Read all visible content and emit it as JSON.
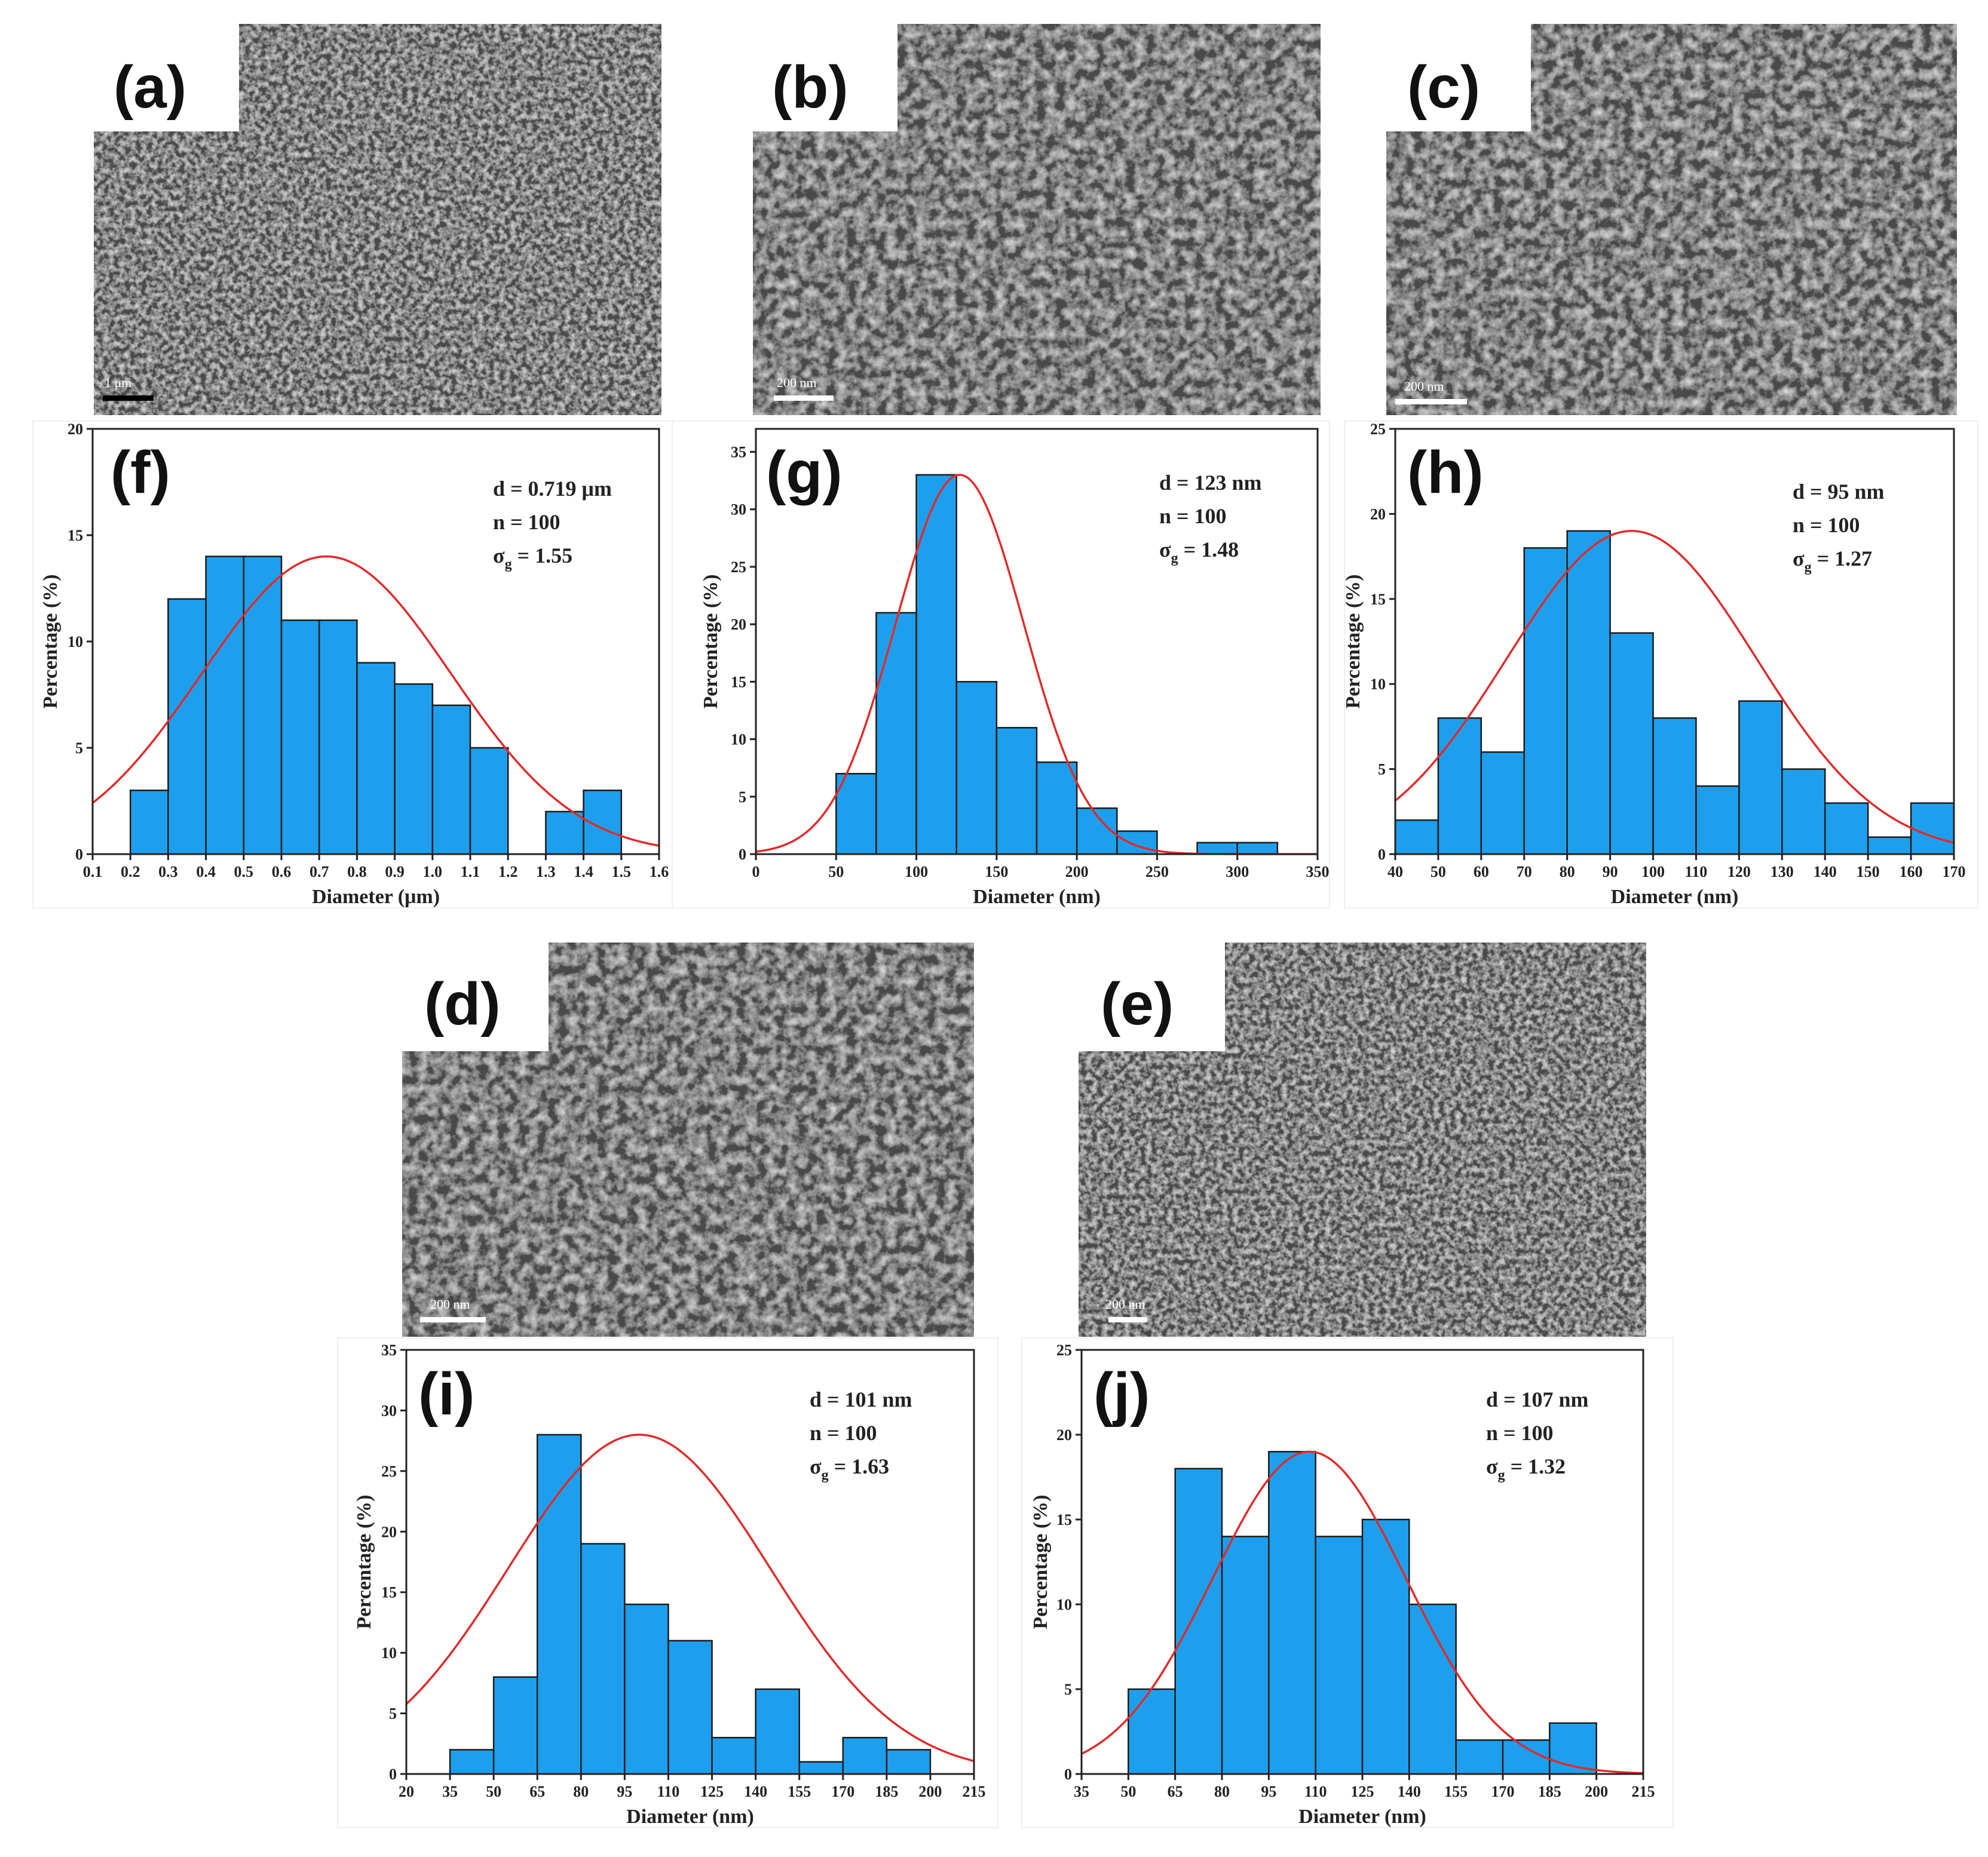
{
  "colors": {
    "bar": "#1e9fee",
    "curve": "#e02a2a",
    "sem_dark": "#4a4a4a",
    "sem_light": "#b9b9b9"
  },
  "sem_panels": [
    {
      "id": "a",
      "label": "(a)",
      "scale_bar": "1 μm"
    },
    {
      "id": "b",
      "label": "(b)",
      "scale_bar": "200 nm"
    },
    {
      "id": "c",
      "label": "(c)",
      "scale_bar": "200 nm"
    },
    {
      "id": "d",
      "label": "(d)",
      "scale_bar": "200 nm"
    },
    {
      "id": "e",
      "label": "(e)",
      "scale_bar": "200 nm"
    }
  ],
  "chart_data": [
    {
      "id": "f",
      "label": "(f)",
      "type": "bar",
      "xlabel": "Diameter (μm)",
      "ylabel": "Percentage (%)",
      "xlim": [
        0.1,
        1.6
      ],
      "ylim": [
        0,
        20
      ],
      "xticks": [
        0.1,
        0.2,
        0.3,
        0.4,
        0.5,
        0.6,
        0.7,
        0.8,
        0.9,
        1.0,
        1.1,
        1.2,
        1.3,
        1.4,
        1.5,
        1.6
      ],
      "xtick_labels": [
        "0.1",
        "0.2",
        "0.3",
        "0.4",
        "0.5",
        "0.6",
        "0.7",
        "0.8",
        "0.9",
        "1.0",
        "1.1",
        "1.2",
        "1.3",
        "1.4",
        "1.5",
        "1.6"
      ],
      "yticks": [
        0,
        5,
        10,
        15,
        20
      ],
      "ytick_labels": [
        "0",
        "5",
        "10",
        "15",
        "20"
      ],
      "bin_width": 0.1,
      "bins": [
        {
          "start": 0.2,
          "value": 3
        },
        {
          "start": 0.3,
          "value": 12
        },
        {
          "start": 0.4,
          "value": 14
        },
        {
          "start": 0.5,
          "value": 14
        },
        {
          "start": 0.6,
          "value": 11
        },
        {
          "start": 0.7,
          "value": 11
        },
        {
          "start": 0.8,
          "value": 9
        },
        {
          "start": 0.9,
          "value": 8
        },
        {
          "start": 1.0,
          "value": 7
        },
        {
          "start": 1.1,
          "value": 5
        },
        {
          "start": 1.3,
          "value": 2
        },
        {
          "start": 1.4,
          "value": 3
        }
      ],
      "fit": {
        "mean": 0.719,
        "peak": 14,
        "sigma": 0.33
      },
      "stats": {
        "d": "d = 0.719 μm",
        "n": "n = 100",
        "sigma_prefix": "σ",
        "sigma_sub": "g",
        "sigma_value": " = 1.55"
      }
    },
    {
      "id": "g",
      "label": "(g)",
      "type": "bar",
      "xlabel": "Diameter (nm)",
      "ylabel": "Percentage (%)",
      "xlim": [
        0,
        350
      ],
      "ylim": [
        0,
        37
      ],
      "xticks": [
        0,
        50,
        100,
        150,
        200,
        250,
        300,
        350
      ],
      "xtick_labels": [
        "0",
        "50",
        "100",
        "150",
        "200",
        "250",
        "300",
        "350"
      ],
      "yticks": [
        0,
        5,
        10,
        15,
        20,
        25,
        30,
        35
      ],
      "ytick_labels": [
        "0",
        "5",
        "10",
        "15",
        "20",
        "25",
        "30",
        "35"
      ],
      "bin_width": 25,
      "bins": [
        {
          "start": 50,
          "value": 7
        },
        {
          "start": 75,
          "value": 21
        },
        {
          "start": 100,
          "value": 33
        },
        {
          "start": 125,
          "value": 15
        },
        {
          "start": 150,
          "value": 11
        },
        {
          "start": 175,
          "value": 8
        },
        {
          "start": 200,
          "value": 4
        },
        {
          "start": 225,
          "value": 2
        },
        {
          "start": 275,
          "value": 1
        },
        {
          "start": 300,
          "value": 1
        }
      ],
      "fit": {
        "mean": 127,
        "peak": 33,
        "sigma": 40
      },
      "stats": {
        "d": "d = 123 nm",
        "n": "n = 100",
        "sigma_prefix": "σ",
        "sigma_sub": "g",
        "sigma_value": " = 1.48"
      }
    },
    {
      "id": "h",
      "label": "(h)",
      "type": "bar",
      "xlabel": "Diameter (nm)",
      "ylabel": "Percentage (%)",
      "xlim": [
        40,
        170
      ],
      "ylim": [
        0,
        25
      ],
      "xticks": [
        40,
        50,
        60,
        70,
        80,
        90,
        100,
        110,
        120,
        130,
        140,
        150,
        160,
        170
      ],
      "xtick_labels": [
        "40",
        "50",
        "60",
        "70",
        "80",
        "90",
        "100",
        "110",
        "120",
        "130",
        "140",
        "150",
        "160",
        "170"
      ],
      "yticks": [
        0,
        5,
        10,
        15,
        20,
        25
      ],
      "ytick_labels": [
        "0",
        "5",
        "10",
        "15",
        "20",
        "25"
      ],
      "bin_width": 10,
      "bins": [
        {
          "start": 40,
          "value": 2
        },
        {
          "start": 50,
          "value": 8
        },
        {
          "start": 60,
          "value": 6
        },
        {
          "start": 70,
          "value": 18
        },
        {
          "start": 80,
          "value": 19
        },
        {
          "start": 90,
          "value": 13
        },
        {
          "start": 100,
          "value": 8
        },
        {
          "start": 110,
          "value": 4
        },
        {
          "start": 120,
          "value": 9
        },
        {
          "start": 130,
          "value": 5
        },
        {
          "start": 140,
          "value": 3
        },
        {
          "start": 150,
          "value": 1
        },
        {
          "start": 160,
          "value": 3
        }
      ],
      "fit": {
        "mean": 95,
        "peak": 19,
        "sigma": 29
      },
      "stats": {
        "d": "d = 95 nm",
        "n": "n = 100",
        "sigma_prefix": "σ",
        "sigma_sub": "g",
        "sigma_value": " = 1.27"
      }
    },
    {
      "id": "i",
      "label": "(i)",
      "type": "bar",
      "xlabel": "Diameter (nm)",
      "ylabel": "Percentage (%)",
      "xlim": [
        20,
        215
      ],
      "ylim": [
        0,
        35
      ],
      "xticks": [
        20,
        35,
        50,
        65,
        80,
        95,
        110,
        125,
        140,
        155,
        170,
        185,
        200,
        215
      ],
      "xtick_labels": [
        "20",
        "35",
        "50",
        "65",
        "80",
        "95",
        "110",
        "125",
        "140",
        "155",
        "170",
        "185",
        "200",
        "215"
      ],
      "yticks": [
        0,
        5,
        10,
        15,
        20,
        25,
        30,
        35
      ],
      "ytick_labels": [
        "0",
        "5",
        "10",
        "15",
        "20",
        "25",
        "30",
        "35"
      ],
      "bin_width": 15,
      "bins": [
        {
          "start": 35,
          "value": 2
        },
        {
          "start": 50,
          "value": 8
        },
        {
          "start": 65,
          "value": 28
        },
        {
          "start": 80,
          "value": 19
        },
        {
          "start": 95,
          "value": 14
        },
        {
          "start": 110,
          "value": 11
        },
        {
          "start": 125,
          "value": 3
        },
        {
          "start": 140,
          "value": 7
        },
        {
          "start": 155,
          "value": 1
        },
        {
          "start": 170,
          "value": 3
        },
        {
          "start": 185,
          "value": 2
        }
      ],
      "fit": {
        "mean": 100,
        "peak": 28,
        "sigma": 45
      },
      "stats": {
        "d": "d = 101 nm",
        "n": "n = 100",
        "sigma_prefix": "σ",
        "sigma_sub": "g",
        "sigma_value": " = 1.63"
      }
    },
    {
      "id": "j",
      "label": "(j)",
      "type": "bar",
      "xlabel": "Diameter (nm)",
      "ylabel": "Percentage (%)",
      "xlim": [
        35,
        215
      ],
      "ylim": [
        0,
        25
      ],
      "xticks": [
        35,
        50,
        65,
        80,
        95,
        110,
        125,
        140,
        155,
        170,
        185,
        200,
        215
      ],
      "xtick_labels": [
        "35",
        "50",
        "65",
        "80",
        "95",
        "110",
        "125",
        "140",
        "155",
        "170",
        "185",
        "200",
        "215"
      ],
      "yticks": [
        0,
        5,
        10,
        15,
        20,
        25
      ],
      "ytick_labels": [
        "0",
        "5",
        "10",
        "15",
        "20",
        "25"
      ],
      "bin_width": 15,
      "bins": [
        {
          "start": 50,
          "value": 5
        },
        {
          "start": 65,
          "value": 18
        },
        {
          "start": 80,
          "value": 14
        },
        {
          "start": 95,
          "value": 19
        },
        {
          "start": 110,
          "value": 14
        },
        {
          "start": 125,
          "value": 15
        },
        {
          "start": 140,
          "value": 10
        },
        {
          "start": 155,
          "value": 2
        },
        {
          "start": 170,
          "value": 2
        },
        {
          "start": 185,
          "value": 3
        }
      ],
      "fit": {
        "mean": 108,
        "peak": 19,
        "sigma": 31
      },
      "stats": {
        "d": "d = 107 nm",
        "n": "n = 100",
        "sigma_prefix": "σ",
        "sigma_sub": "g",
        "sigma_value": " = 1.32"
      }
    }
  ]
}
